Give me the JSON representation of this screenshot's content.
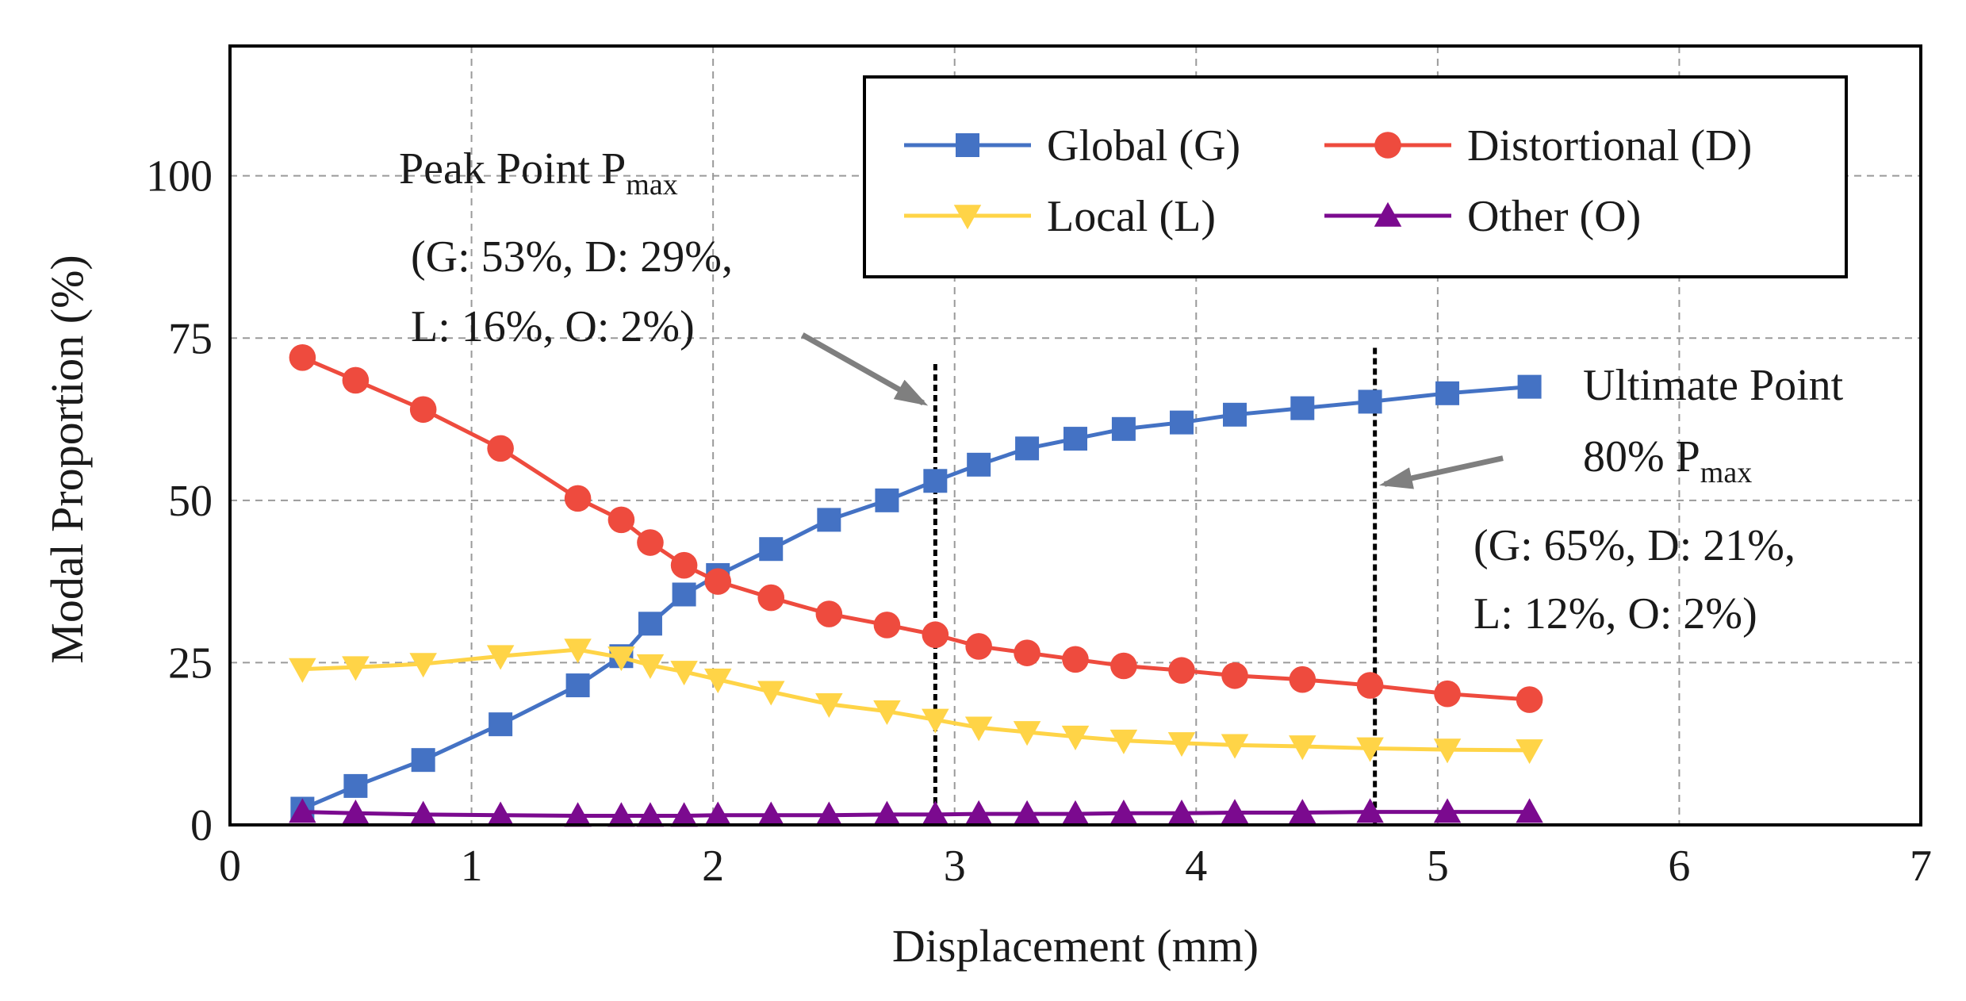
{
  "chart_data": {
    "type": "line",
    "xlabel": "Displacement (mm)",
    "ylabel": "Modal Proportion (%)",
    "xlim": [
      0,
      7
    ],
    "ylim": [
      0,
      120
    ],
    "xticks": [
      0,
      1,
      2,
      3,
      4,
      5,
      6,
      7
    ],
    "yticks": [
      0,
      25,
      50,
      75,
      100
    ],
    "grid": true,
    "legend_position": "top-right",
    "series": [
      {
        "name": "Global (G)",
        "color": "#4472C4",
        "marker": "square",
        "x": [
          0.3,
          0.52,
          0.8,
          1.12,
          1.44,
          1.62,
          1.74,
          1.88,
          2.02,
          2.24,
          2.48,
          2.72,
          2.92,
          3.1,
          3.3,
          3.5,
          3.7,
          3.94,
          4.16,
          4.44,
          4.72,
          5.04,
          5.38
        ],
        "y": [
          2.5,
          6,
          10,
          15.5,
          21.5,
          26,
          31,
          35.5,
          38.5,
          42.5,
          47,
          50,
          53,
          55.5,
          58,
          59.5,
          61,
          62,
          63.2,
          64.2,
          65.2,
          66.5,
          67.5
        ]
      },
      {
        "name": "Distortional (D)",
        "color": "#EE4B3E",
        "marker": "circle",
        "x": [
          0.3,
          0.52,
          0.8,
          1.12,
          1.44,
          1.62,
          1.74,
          1.88,
          2.02,
          2.24,
          2.48,
          2.72,
          2.92,
          3.1,
          3.3,
          3.5,
          3.7,
          3.94,
          4.16,
          4.44,
          4.72,
          5.04,
          5.38
        ],
        "y": [
          72,
          68.5,
          64,
          58,
          50.3,
          47,
          43.5,
          40,
          37.5,
          35,
          32.5,
          30.8,
          29.3,
          27.5,
          26.5,
          25.5,
          24.5,
          23.8,
          23,
          22.4,
          21.5,
          20.2,
          19.3
        ]
      },
      {
        "name": "Local (L)",
        "color": "#FFD447",
        "marker": "triangle-down",
        "x": [
          0.3,
          0.52,
          0.8,
          1.12,
          1.44,
          1.62,
          1.74,
          1.88,
          2.02,
          2.24,
          2.48,
          2.72,
          2.92,
          3.1,
          3.3,
          3.5,
          3.7,
          3.94,
          4.16,
          4.44,
          4.72,
          5.04,
          5.38
        ],
        "y": [
          24,
          24.3,
          24.8,
          26,
          27,
          25.8,
          24.6,
          23.6,
          22.4,
          20.5,
          18.6,
          17.5,
          16.2,
          15,
          14.3,
          13.6,
          13,
          12.6,
          12.3,
          12.1,
          11.8,
          11.6,
          11.5
        ]
      },
      {
        "name": "Other (O)",
        "color": "#7B0A8F",
        "marker": "triangle-up",
        "x": [
          0.3,
          0.52,
          0.8,
          1.12,
          1.44,
          1.62,
          1.74,
          1.88,
          2.02,
          2.24,
          2.48,
          2.72,
          2.92,
          3.1,
          3.3,
          3.5,
          3.7,
          3.94,
          4.16,
          4.44,
          4.72,
          5.04,
          5.38
        ],
        "y": [
          2,
          1.8,
          1.6,
          1.5,
          1.4,
          1.4,
          1.4,
          1.4,
          1.5,
          1.5,
          1.5,
          1.6,
          1.6,
          1.7,
          1.7,
          1.7,
          1.8,
          1.8,
          1.9,
          1.9,
          2,
          2,
          2
        ]
      }
    ],
    "reference_lines": [
      {
        "x": 2.92,
        "y_top": 71
      },
      {
        "x": 4.74,
        "y_top": 73.5
      }
    ],
    "annotations": [
      {
        "lines": [
          "Peak Point  P",
          "(G: 53%, D: 29%,",
          "L: 16%, O: 2%)"
        ],
        "subscript": "max",
        "arrow": {
          "from": [
            2.37,
            75.5
          ],
          "to": [
            2.87,
            65
          ]
        }
      },
      {
        "lines": [
          "Ultimate Point",
          "80% P",
          "(G: 65%, D: 21%,",
          "L: 12%, O: 2%)"
        ],
        "subscript": "max",
        "arrow": {
          "from": [
            5.27,
            56.5
          ],
          "to": [
            4.78,
            52.5
          ]
        }
      }
    ]
  }
}
